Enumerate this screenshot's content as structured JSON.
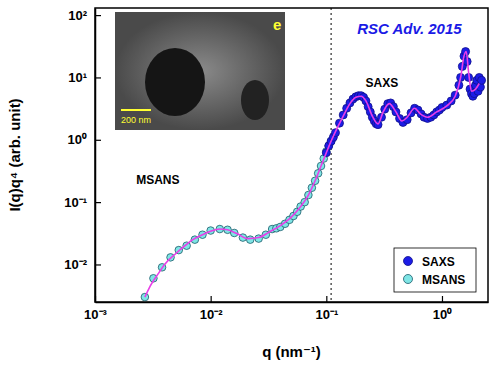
{
  "chart_data": {
    "type": "scatter",
    "log": true,
    "xlabel": "q (nm⁻¹)",
    "ylabel": "I(q)q⁴ (arb. unit)",
    "xlim": [
      0.001,
      2.5
    ],
    "ylim": [
      0.0025,
      130
    ],
    "xticks": [
      {
        "value": 0.001,
        "label": "10⁻³"
      },
      {
        "value": 0.01,
        "label": "10⁻²"
      },
      {
        "value": 0.1,
        "label": "10⁻¹"
      },
      {
        "value": 1,
        "label": "10⁰"
      }
    ],
    "yticks": [
      {
        "value": 0.01,
        "label": "10⁻²"
      },
      {
        "value": 0.1,
        "label": "10⁻¹"
      },
      {
        "value": 1,
        "label": "10⁰"
      },
      {
        "value": 10,
        "label": "10¹"
      },
      {
        "value": 100,
        "label": "10²"
      }
    ],
    "legend": "lower right",
    "vline_x": 0.11,
    "annotations": [
      "SAXS",
      "MSANS",
      "RSC Adv. 2015"
    ],
    "inset": {
      "label": "e",
      "scale_bar": "200 nm"
    },
    "series": [
      {
        "name": "SAXS",
        "color": "#1c1ce6",
        "marker": "circle",
        "x": [
          0.1,
          0.105,
          0.11,
          0.115,
          0.12,
          0.13,
          0.14,
          0.15,
          0.16,
          0.17,
          0.18,
          0.19,
          0.2,
          0.21,
          0.22,
          0.23,
          0.24,
          0.25,
          0.26,
          0.27,
          0.28,
          0.3,
          0.32,
          0.34,
          0.36,
          0.38,
          0.4,
          0.43,
          0.46,
          0.5,
          0.54,
          0.58,
          0.62,
          0.66,
          0.7,
          0.75,
          0.8,
          0.85,
          0.9,
          0.95,
          1.0,
          1.1,
          1.2,
          1.3,
          1.4,
          1.45,
          1.5,
          1.55,
          1.6,
          1.65,
          1.7,
          1.75,
          1.8,
          1.85,
          1.9,
          1.95,
          2.0,
          2.05,
          2.1,
          2.15,
          2.2
        ],
        "values": [
          0.62,
          0.8,
          0.95,
          1.1,
          1.3,
          1.85,
          2.5,
          3.2,
          3.9,
          4.5,
          4.9,
          5.1,
          5.1,
          4.8,
          4.2,
          3.4,
          2.8,
          2.3,
          2.0,
          1.8,
          1.75,
          2.3,
          3.1,
          3.8,
          3.9,
          3.4,
          2.8,
          2.2,
          1.9,
          2.1,
          2.7,
          3.2,
          3.0,
          2.6,
          2.3,
          2.2,
          2.3,
          2.5,
          2.8,
          3.0,
          3.3,
          3.6,
          4.2,
          5.2,
          7.5,
          10,
          15,
          22,
          26,
          18,
          10,
          6.5,
          5.5,
          5.0,
          5.5,
          7.5,
          9,
          6,
          10,
          7,
          9
        ]
      },
      {
        "name": "MSANS",
        "color": "#7fe5e5",
        "marker": "circle",
        "x": [
          0.0027,
          0.0032,
          0.0038,
          0.0045,
          0.0053,
          0.0062,
          0.0073,
          0.0085,
          0.01,
          0.012,
          0.014,
          0.016,
          0.019,
          0.022,
          0.026,
          0.03,
          0.034,
          0.037,
          0.04,
          0.044,
          0.048,
          0.052,
          0.056,
          0.06,
          0.065,
          0.07,
          0.075,
          0.08,
          0.085,
          0.09,
          0.095,
          0.1,
          0.105,
          0.11
        ],
        "values": [
          0.003,
          0.006,
          0.009,
          0.013,
          0.017,
          0.02,
          0.025,
          0.03,
          0.035,
          0.037,
          0.036,
          0.032,
          0.027,
          0.025,
          0.026,
          0.03,
          0.037,
          0.038,
          0.04,
          0.045,
          0.052,
          0.06,
          0.07,
          0.085,
          0.1,
          0.13,
          0.17,
          0.22,
          0.29,
          0.38,
          0.5,
          0.65,
          0.8,
          0.95
        ]
      },
      {
        "type": "line",
        "color": "#e83ee8",
        "line_style": "solid",
        "x": [
          0.0027,
          0.003,
          0.0035,
          0.004,
          0.005,
          0.006,
          0.007,
          0.0085,
          0.01,
          0.012,
          0.014,
          0.017,
          0.021,
          0.026,
          0.032,
          0.04,
          0.05,
          0.06,
          0.07,
          0.08,
          0.09,
          0.1,
          0.11,
          0.12,
          0.14,
          0.16,
          0.18,
          0.2,
          0.22,
          0.25,
          0.28,
          0.31,
          0.35,
          0.4,
          0.45,
          0.5,
          0.58,
          0.65,
          0.75,
          0.9,
          1.1,
          1.3,
          1.45,
          1.55,
          1.62,
          1.7,
          1.8,
          1.95,
          2.1
        ],
        "values": [
          0.003,
          0.0045,
          0.007,
          0.01,
          0.015,
          0.02,
          0.025,
          0.03,
          0.034,
          0.037,
          0.036,
          0.031,
          0.026,
          0.027,
          0.033,
          0.042,
          0.058,
          0.085,
          0.13,
          0.22,
          0.38,
          0.62,
          0.95,
          1.35,
          2.4,
          3.8,
          4.8,
          5.0,
          4.2,
          2.4,
          1.8,
          2.8,
          3.8,
          2.8,
          2.0,
          2.3,
          3.2,
          2.6,
          2.3,
          2.8,
          3.5,
          5,
          10,
          22,
          26,
          12,
          6,
          6.5,
          8
        ]
      }
    ]
  }
}
